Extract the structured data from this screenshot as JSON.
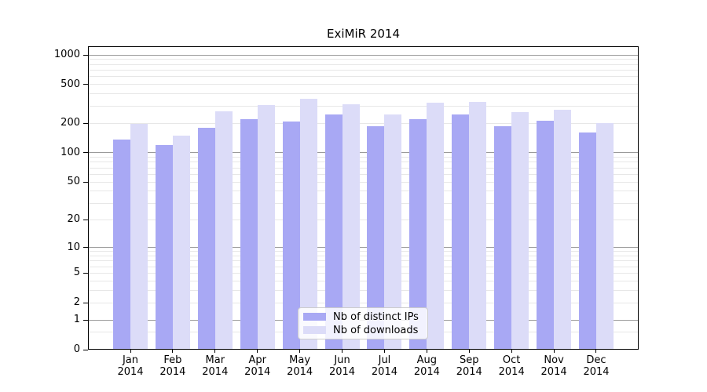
{
  "chart_data": {
    "type": "bar",
    "title": "ExiMiR 2014",
    "x_axis": {
      "months": [
        "Jan",
        "Feb",
        "Mar",
        "Apr",
        "May",
        "Jun",
        "Jul",
        "Aug",
        "Sep",
        "Oct",
        "Nov",
        "Dec"
      ],
      "year": "2014"
    },
    "y_axis": {
      "scale": "symlog (log1p)",
      "tick_labels": [
        "1000",
        "500",
        "200",
        "100",
        "50",
        "20",
        "10",
        "5",
        "2",
        "1",
        "0"
      ],
      "tick_values": [
        1000,
        500,
        200,
        100,
        50,
        20,
        10,
        5,
        2,
        1,
        0
      ],
      "decade_values": [
        1,
        10,
        100,
        1000
      ],
      "minor_values": [
        0.5,
        2,
        3,
        4,
        5,
        6,
        7,
        8,
        9,
        20,
        30,
        40,
        50,
        60,
        70,
        80,
        90,
        200,
        300,
        400,
        500,
        600,
        700,
        800,
        900
      ],
      "ylim": [
        0,
        1224
      ]
    },
    "series": [
      {
        "name": "Nb of distinct IPs",
        "color": "#a8a8f4",
        "values": [
          137,
          120,
          181,
          219,
          208,
          248,
          186,
          222,
          248,
          188,
          214,
          161
        ]
      },
      {
        "name": "Nb of downloads",
        "color": "#dcdcf8",
        "values": [
          196,
          149,
          266,
          306,
          359,
          313,
          247,
          325,
          329,
          259,
          277,
          201
        ]
      }
    ],
    "legend": {
      "position": "bottom-center-inside"
    },
    "grid": "on",
    "colors": {
      "grid_major": "#9a9a9a",
      "grid_minor": "#e7e7e7",
      "frame": "#000000",
      "text": "#000000",
      "background": "#ffffff"
    }
  }
}
